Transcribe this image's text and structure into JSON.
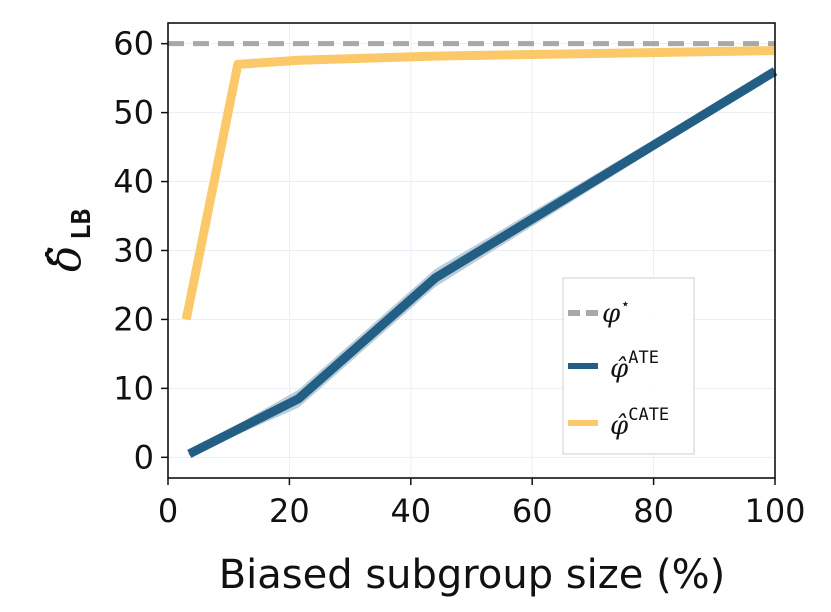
{
  "chart_data": {
    "type": "line",
    "title": "",
    "xlabel": "Biased subgroup size (%)",
    "ylabel": "δ̂",
    "ylabel_sub": "LB",
    "xlim": [
      0,
      100
    ],
    "ylim": [
      -3,
      63
    ],
    "xticks": [
      0,
      20,
      40,
      60,
      80,
      100
    ],
    "yticks": [
      0,
      10,
      20,
      30,
      40,
      50,
      60
    ],
    "grid": true,
    "legend_position": "center-right",
    "series": [
      {
        "name": "φ*",
        "legend_base": "φ",
        "legend_sup": "⋆",
        "style": "dashed",
        "color": "#a8a8a8",
        "x": [
          0,
          100
        ],
        "y": [
          60,
          60
        ]
      },
      {
        "name": "φ̂ ATE",
        "legend_base": "φ̂",
        "legend_sup": "ATE",
        "style": "solid",
        "color": "#235f85",
        "band_color": "#9fb8ca",
        "x": [
          3.5,
          21.5,
          44,
          100
        ],
        "y": [
          0.5,
          8.5,
          26,
          56
        ],
        "y_lower": [
          0.2,
          7.2,
          24.7,
          55.5
        ],
        "y_upper": [
          0.8,
          9.8,
          27.3,
          56.5
        ]
      },
      {
        "name": "φ̂ CATE",
        "legend_base": "φ̂",
        "legend_sup": "CATE",
        "style": "solid",
        "color": "#fcc96a",
        "x": [
          3,
          11.5,
          21.5,
          44,
          100
        ],
        "y": [
          20,
          57,
          57.6,
          58.2,
          59
        ]
      }
    ]
  }
}
